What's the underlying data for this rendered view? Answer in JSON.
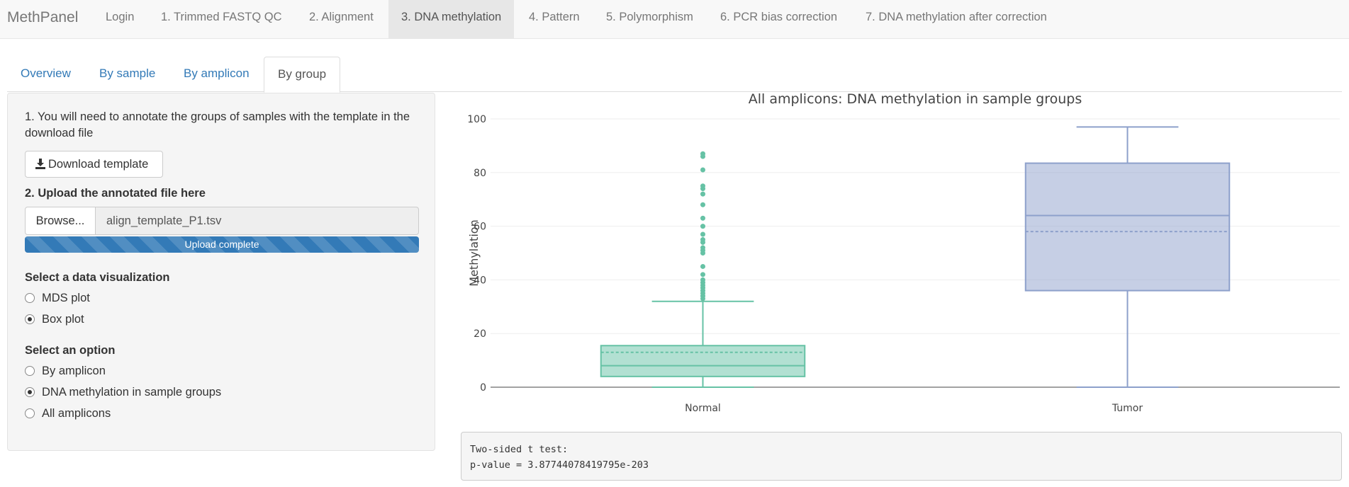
{
  "navbar": {
    "brand": "MethPanel",
    "items": [
      {
        "label": "Login"
      },
      {
        "label": "1. Trimmed FASTQ QC"
      },
      {
        "label": "2. Alignment"
      },
      {
        "label": "3. DNA methylation",
        "active": true
      },
      {
        "label": "4. Pattern"
      },
      {
        "label": "5. Polymorphism"
      },
      {
        "label": "6. PCR bias correction"
      },
      {
        "label": "7. DNA methylation after correction"
      }
    ]
  },
  "tabs": [
    {
      "label": "Overview"
    },
    {
      "label": "By sample"
    },
    {
      "label": "By amplicon"
    },
    {
      "label": "By group",
      "active": true
    }
  ],
  "sidebar": {
    "step1_text": "1. You will need to annotate the groups of samples with the template in the download file",
    "download_button": "Download template",
    "step2_label": "2. Upload the annotated file here",
    "browse_button": "Browse...",
    "file_name": "align_template_P1.tsv",
    "progress_text": "Upload complete",
    "progress_percent": 100,
    "viz_label": "Select a data visualization",
    "viz_options": [
      {
        "label": "MDS plot",
        "checked": false
      },
      {
        "label": "Box plot",
        "checked": true
      }
    ],
    "option_label": "Select an option",
    "options": [
      {
        "label": "By amplicon",
        "checked": false
      },
      {
        "label": "DNA methylation in sample groups",
        "checked": true
      },
      {
        "label": "All amplicons",
        "checked": false
      }
    ]
  },
  "chart_data": {
    "type": "box",
    "title": "All amplicons: DNA methylation in sample groups",
    "xlabel": "",
    "ylabel": "Methylation",
    "ylim": [
      0,
      100
    ],
    "yticks": [
      0,
      20,
      40,
      60,
      80,
      100
    ],
    "categories": [
      "Normal",
      "Tumor"
    ],
    "boxes": [
      {
        "name": "Normal",
        "min": 0,
        "q1": 4,
        "median": 8,
        "mean": 13,
        "q3": 15.5,
        "max": 32,
        "outliers": [
          33,
          34,
          35,
          36,
          37,
          38,
          39,
          40,
          42,
          45,
          50,
          51,
          52,
          54,
          55,
          57,
          60,
          63,
          68,
          72,
          74,
          75,
          81,
          86,
          87
        ],
        "color": "#66c2a5"
      },
      {
        "name": "Tumor",
        "min": 0,
        "q1": 36,
        "median": 64,
        "mean": 58,
        "q3": 83.5,
        "max": 97,
        "outliers": [],
        "color": "#8da0cb"
      }
    ]
  },
  "stats": {
    "line1": "Two-sided t test:",
    "line2": "p-value = 3.87744078419795e-203"
  }
}
